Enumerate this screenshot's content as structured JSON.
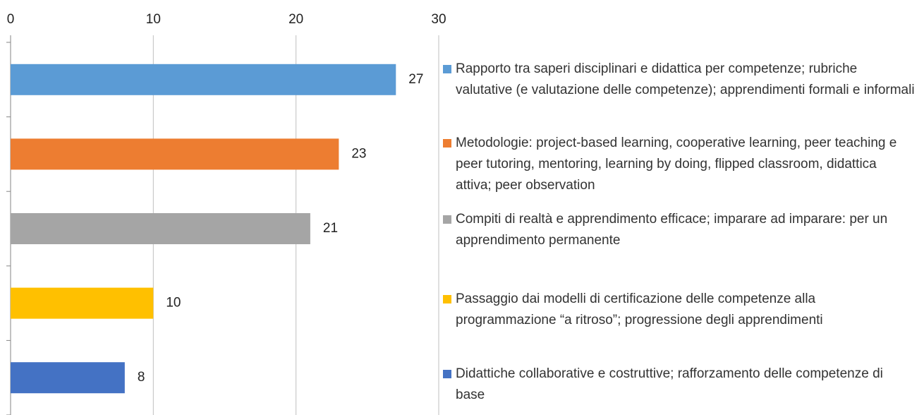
{
  "chart_data": {
    "type": "bar",
    "orientation": "horizontal",
    "series": [
      {
        "name": "Rapporto tra saperi disciplinari e didattica per competenze; rubriche valutative (e valutazione delle competenze); apprendimenti formali e informali",
        "color": "#5b9bd5",
        "values": [
          27
        ]
      },
      {
        "name": "Metodologie: project-based learning, cooperative learning, peer teaching e peer tutoring, mentoring, learning by doing, flipped classroom, didattica attiva; peer observation",
        "color": "#ed7d31",
        "values": [
          23
        ]
      },
      {
        "name": "Compiti di realtà e apprendimento efficace; imparare ad imparare: per un apprendimento permanente",
        "color": "#a5a5a5",
        "values": [
          21
        ]
      },
      {
        "name": "Passaggio dai modelli di certificazione delle competenze alla programmazione “a ritroso”; progressione degli apprendimenti",
        "color": "#ffc000",
        "values": [
          10
        ]
      },
      {
        "name": "Didattiche collaborative e costruttive; rafforzamento delle competenze di base",
        "color": "#4472c4",
        "values": [
          8
        ]
      }
    ],
    "xlim": [
      0,
      30
    ],
    "xticks": [
      0,
      10,
      20,
      30
    ],
    "grid": true,
    "legend": "right"
  }
}
